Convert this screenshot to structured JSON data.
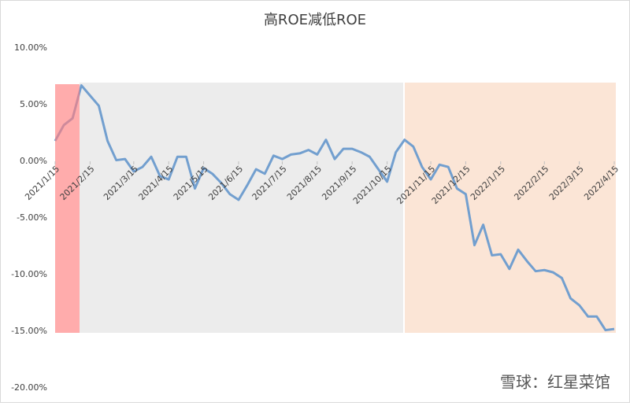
{
  "chart_data": {
    "type": "line",
    "title": "高ROE减低ROE",
    "categories": [
      "2021/1/15",
      null,
      null,
      null,
      "2021/2/15",
      null,
      null,
      null,
      null,
      "2021/3/15",
      null,
      null,
      null,
      "2021/4/15",
      null,
      null,
      null,
      "2021/5/15",
      null,
      null,
      null,
      "2021/6/15",
      null,
      null,
      null,
      null,
      "2021/7/15",
      null,
      null,
      null,
      "2021/8/15",
      null,
      null,
      null,
      "2021/9/15",
      null,
      null,
      null,
      "2021/10/15",
      null,
      null,
      null,
      null,
      "2021/11/15",
      null,
      null,
      null,
      "2021/12/15",
      null,
      null,
      null,
      "2022/1/15",
      null,
      null,
      null,
      null,
      "2022/2/15",
      null,
      null,
      null,
      "2022/3/15",
      null,
      null,
      null,
      "2022/4/15"
    ],
    "series": [
      {
        "name": "高ROE减低ROE",
        "color": "#729fcf",
        "values": [
          1.8,
          3.2,
          3.8,
          6.7,
          5.8,
          4.9,
          1.8,
          0.1,
          0.2,
          -0.9,
          -0.5,
          0.4,
          -1.3,
          -1.6,
          0.4,
          0.4,
          -2.4,
          -0.6,
          -1.1,
          -1.9,
          -2.9,
          -3.4,
          -2.1,
          -0.7,
          -1.1,
          0.5,
          0.2,
          0.6,
          0.7,
          1.0,
          0.6,
          1.9,
          0.2,
          1.1,
          1.1,
          0.8,
          0.4,
          -0.7,
          -1.8,
          0.8,
          1.9,
          1.3,
          -0.5,
          -1.6,
          -0.3,
          -0.5,
          -2.4,
          -2.9,
          -7.4,
          -5.6,
          -8.3,
          -8.2,
          -9.5,
          -7.8,
          -8.8,
          -9.7,
          -9.6,
          -9.8,
          -10.3,
          -12.1,
          -12.7,
          -13.7,
          -13.7,
          -14.9,
          -14.8
        ]
      }
    ],
    "ylim": [
      -20,
      10
    ],
    "yticks": [
      {
        "value": -20,
        "label": "-20.00%"
      },
      {
        "value": -15,
        "label": "-15.00%"
      },
      {
        "value": -10,
        "label": "-10.00%"
      },
      {
        "value": -5,
        "label": "-5.00%"
      },
      {
        "value": 0,
        "label": "0.00%"
      },
      {
        "value": 5,
        "label": "5.00%"
      },
      {
        "value": 10,
        "label": "10.00%"
      }
    ],
    "grid": false,
    "watermark": "雪球：红星菜馆"
  }
}
